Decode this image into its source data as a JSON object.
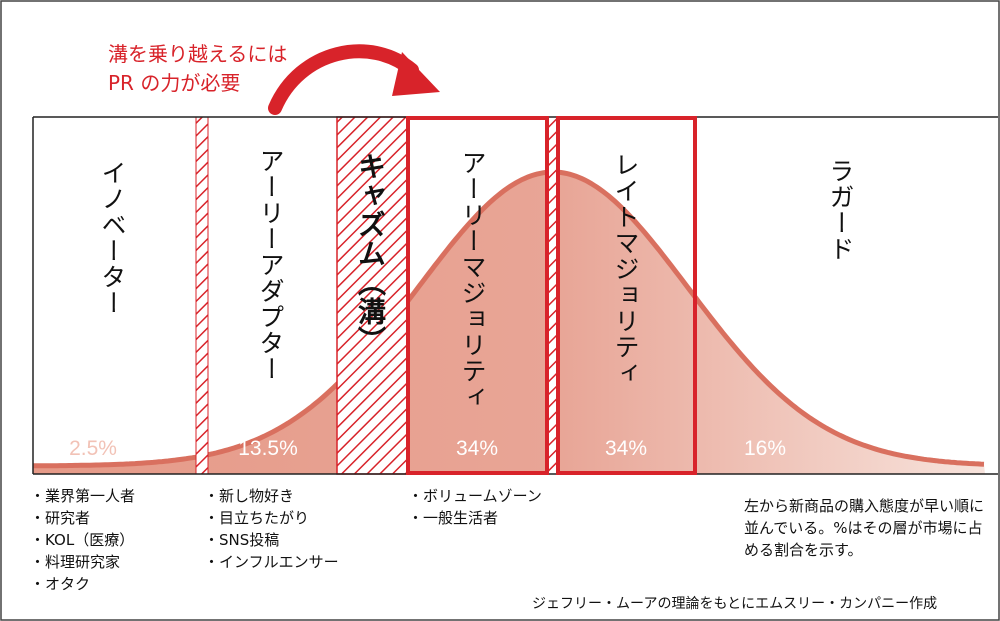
{
  "callout": {
    "line1": "溝を乗り越えるには",
    "line2": "PR の力が必要"
  },
  "segments": [
    {
      "key": "innovator",
      "label": "イノベーター",
      "percent": "2.5%",
      "share": 2.5
    },
    {
      "key": "early_adopter",
      "label": "アーリーアダプター",
      "percent": "13.5%",
      "share": 13.5
    },
    {
      "key": "chasm",
      "label": "キャズム（溝）"
    },
    {
      "key": "early_majority",
      "label": "アーリーマジョリティ",
      "percent": "34%",
      "share": 34
    },
    {
      "key": "late_majority",
      "label": "レイトマジョリティ",
      "percent": "34%",
      "share": 34
    },
    {
      "key": "laggard",
      "label": "ラガード",
      "percent": "16%",
      "share": 16
    }
  ],
  "attributes": {
    "innovator": [
      "業界第一人者",
      "研究者",
      "KOL（医療）",
      "料理研究家",
      "オタク"
    ],
    "early_adopter": [
      "新し物好き",
      "目立ちたがり",
      "SNS投稿",
      "インフルエンサー"
    ],
    "early_majority": [
      "ボリュームゾーン",
      "一般生活者"
    ]
  },
  "note": "左から新商品の購入態度が早い順に並んでいる。%はその層が市場に占める割合を示す。",
  "credit": "ジェフリー・ムーアの理論をもとにエムスリー・カンパニー作成",
  "colors": {
    "accent_red": "#d8232a",
    "curve": "#d9705f",
    "fill": "#e8a596",
    "fill_light": "#f6d9d1",
    "frame": "#222222"
  }
}
